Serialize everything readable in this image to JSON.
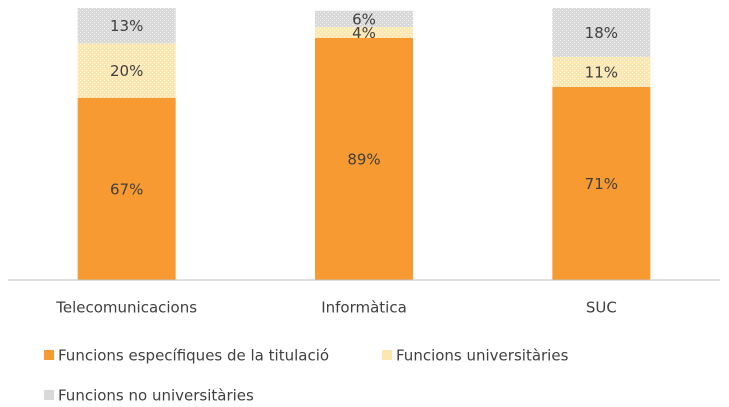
{
  "chart_data": {
    "type": "stacked_bar",
    "categories": [
      "Telecomunicacions",
      "Informàtica",
      "SUC"
    ],
    "series": [
      {
        "name": "Funcions específiques de la titulació",
        "color": "#f79a32",
        "values": [
          67,
          89,
          71
        ],
        "value_labels": [
          "67%",
          "89%",
          "71%"
        ]
      },
      {
        "name": "Funcions universitàries",
        "color": "#fde6b0",
        "values": [
          20,
          4,
          11
        ],
        "value_labels": [
          "20%",
          "4%",
          "11%"
        ]
      },
      {
        "name": "Funcions no universitàries",
        "color": "#d9d9d9",
        "values": [
          13,
          6,
          18
        ],
        "value_labels": [
          "13%",
          "6%",
          "18%"
        ]
      }
    ],
    "ylim": [
      0,
      100
    ]
  }
}
